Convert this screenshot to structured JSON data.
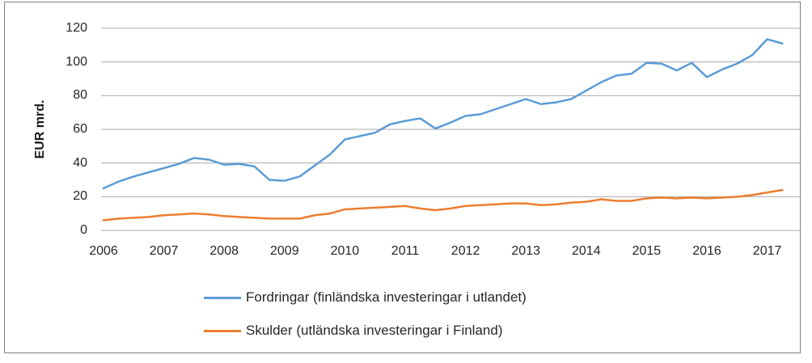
{
  "chart_data": {
    "type": "line",
    "title": "",
    "ylabel": "EUR mrd.",
    "ylim": [
      0,
      120
    ],
    "yticks": [
      0,
      20,
      40,
      60,
      80,
      100,
      120
    ],
    "year_labels": [
      "2006",
      "2007",
      "2008",
      "2009",
      "2010",
      "2011",
      "2012",
      "2013",
      "2014",
      "2015",
      "2016",
      "2017"
    ],
    "x": [
      "2006Q1",
      "2006Q2",
      "2006Q3",
      "2006Q4",
      "2007Q1",
      "2007Q2",
      "2007Q3",
      "2007Q4",
      "2008Q1",
      "2008Q2",
      "2008Q3",
      "2008Q4",
      "2009Q1",
      "2009Q2",
      "2009Q3",
      "2009Q4",
      "2010Q1",
      "2010Q2",
      "2010Q3",
      "2010Q4",
      "2011Q1",
      "2011Q2",
      "2011Q3",
      "2011Q4",
      "2012Q1",
      "2012Q2",
      "2012Q3",
      "2012Q4",
      "2013Q1",
      "2013Q2",
      "2013Q3",
      "2013Q4",
      "2014Q1",
      "2014Q2",
      "2014Q3",
      "2014Q4",
      "2015Q1",
      "2015Q2",
      "2015Q3",
      "2015Q4",
      "2016Q1",
      "2016Q2",
      "2016Q3",
      "2016Q4",
      "2017Q1",
      "2017Q2"
    ],
    "grid": true,
    "legend_position": "bottom-left",
    "background_color": "#FFFFFF",
    "gridline_color": "#A9A9A9",
    "border_color": "#7F7F7F",
    "text_color": "#262626",
    "series": [
      {
        "name": "Fordringar (finländska investeringar i utlandet)",
        "color": "#5B9BD5",
        "values": [
          25,
          29,
          32,
          34.5,
          37,
          39.5,
          43,
          42,
          39,
          39.5,
          38,
          30,
          29.5,
          32,
          38.5,
          45,
          54,
          56,
          58,
          63,
          65,
          66.5,
          60.5,
          64,
          68,
          69,
          72,
          75,
          78,
          75,
          76,
          78,
          83,
          88,
          92,
          93,
          99.5,
          99,
          95,
          99.5,
          91,
          95.5,
          99,
          104,
          113.5,
          111
        ]
      },
      {
        "name": "Skulder (utländska investeringar i Finland)",
        "color": "#ED7D31",
        "values": [
          6,
          7,
          7.5,
          8,
          9,
          9.5,
          10,
          9.5,
          8.5,
          8,
          7.5,
          7,
          7,
          7,
          9,
          10,
          12.5,
          13,
          13.5,
          14,
          14.5,
          13,
          12,
          13,
          14.5,
          15,
          15.5,
          16,
          16,
          15,
          15.5,
          16.5,
          17,
          18.5,
          17.5,
          17.5,
          19,
          19.5,
          19,
          19.5,
          19,
          19.5,
          20,
          21,
          22.5,
          24
        ]
      }
    ]
  }
}
